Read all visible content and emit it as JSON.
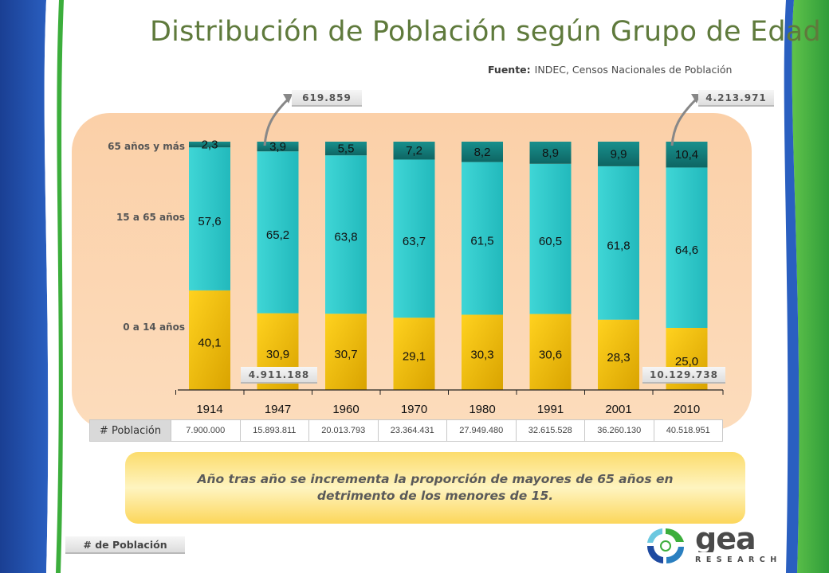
{
  "title": "Distribución de Población según Grupo de Edad",
  "source": {
    "label": "Fuente:",
    "text": "INDEC, Censos Nacionales de Población"
  },
  "callouts": {
    "elderly_1947": "619.859",
    "elderly_2010": "4.213.971",
    "young_1947": "4.911.188",
    "young_2010": "10.129.738"
  },
  "row_labels": {
    "old": "65 años y más",
    "mid": "15 a 65 años",
    "young": "0 a 14 años"
  },
  "chart_data": {
    "type": "bar",
    "stacked": true,
    "percent": true,
    "categories": [
      "1914",
      "1947",
      "1960",
      "1970",
      "1980",
      "1991",
      "2001",
      "2010"
    ],
    "series": [
      {
        "name": "0 a 14 años",
        "values": [
          40.1,
          30.9,
          30.7,
          29.1,
          30.3,
          30.6,
          28.3,
          25.0
        ],
        "labels": [
          "40,1",
          "30,9",
          "30,7",
          "29,1",
          "30,3",
          "30,6",
          "28,3",
          "25,0"
        ],
        "color": "#f3c411"
      },
      {
        "name": "15 a 65 años",
        "values": [
          57.6,
          65.2,
          63.8,
          63.7,
          61.5,
          60.5,
          61.8,
          64.6
        ],
        "labels": [
          "57,6",
          "65,2",
          "63,8",
          "63,7",
          "61,5",
          "60,5",
          "61,8",
          "64,6"
        ],
        "color": "#33c9c9"
      },
      {
        "name": "65 años y más",
        "values": [
          2.3,
          3.9,
          5.5,
          7.2,
          8.2,
          8.9,
          9.9,
          10.4
        ],
        "labels": [
          "2,3",
          "3,9",
          "5,5",
          "7,2",
          "8,2",
          "8,9",
          "9,9",
          "10,4"
        ],
        "color": "#137a77"
      }
    ],
    "ylim": [
      0,
      100
    ],
    "grid": false
  },
  "population_table": {
    "header": "# Población",
    "values": [
      "7.900.000",
      "15.893.811",
      "20.013.793",
      "23.364.431",
      "27.949.480",
      "32.615.528",
      "36.260.130",
      "40.518.951"
    ]
  },
  "note": "Año tras año se incrementa la proporción de mayores de 65 años en detrimento de los menores de 15.",
  "legend_box": "# de Población",
  "logo": {
    "word": "gea",
    "sub": "RESEARCH"
  },
  "colors": {
    "title": "#5f7a3c",
    "side_blue": "#1f4aa0",
    "side_green": "#3cae3c",
    "panel": "#fcd6b2"
  }
}
